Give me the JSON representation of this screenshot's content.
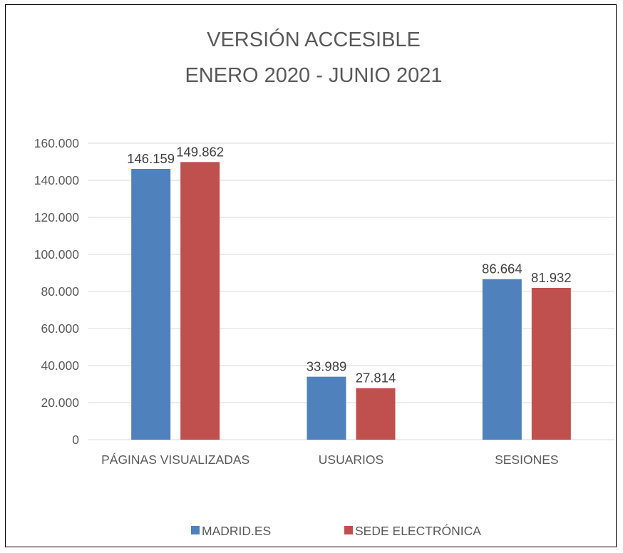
{
  "chart_data": {
    "type": "bar",
    "title": [
      "VERSIÓN ACCESIBLE",
      "ENERO 2020 - JUNIO 2021"
    ],
    "categories": [
      "PÁGINAS VISUALIZADAS",
      "USUARIOS",
      "SESIONES"
    ],
    "series": [
      {
        "name": "MADRID.ES",
        "color": "#4f81bd",
        "values": [
          146159,
          33989,
          86664
        ],
        "labels": [
          "146.159",
          "33.989",
          "86.664"
        ]
      },
      {
        "name": "SEDE ELECTRÓNICA",
        "color": "#c0504d",
        "values": [
          149862,
          27814,
          81932
        ],
        "labels": [
          "149.862",
          "27.814",
          "81.932"
        ]
      }
    ],
    "ylim": [
      0,
      160000
    ],
    "yticks": [
      0,
      20000,
      40000,
      60000,
      80000,
      100000,
      120000,
      140000,
      160000
    ],
    "ytick_labels": [
      "0",
      "20.000",
      "40.000",
      "60.000",
      "80.000",
      "100.000",
      "120.000",
      "140.000",
      "160.000"
    ],
    "xlabel": "",
    "ylabel": "",
    "grid": true,
    "legend_position": "bottom"
  }
}
